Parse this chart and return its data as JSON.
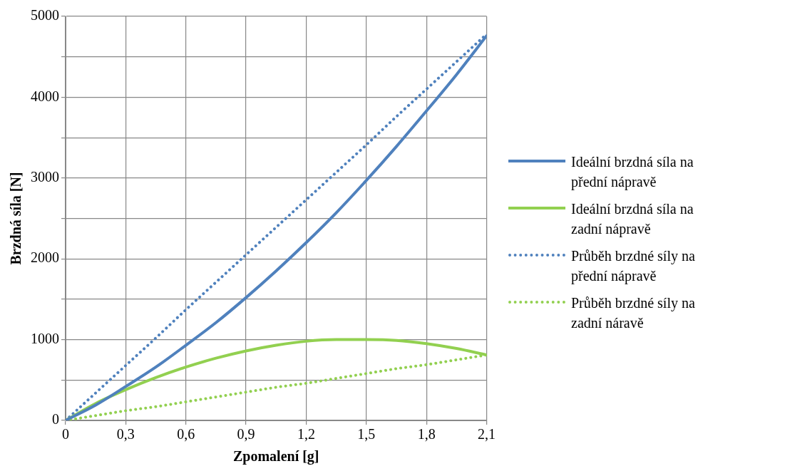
{
  "chart_data": {
    "type": "line",
    "xlabel": "Zpomalení [g]",
    "ylabel": "Brzdná síla [N]",
    "x": [
      0,
      0.15,
      0.3,
      0.45,
      0.6,
      0.75,
      0.9,
      1.05,
      1.2,
      1.35,
      1.5,
      1.65,
      1.8,
      1.95,
      2.1
    ],
    "series": [
      {
        "name": "Ideální brzdná síla na přední nápravě",
        "color": "#4f81bd",
        "line_style": "solid",
        "values": [
          0,
          190,
          420,
          660,
          930,
          1210,
          1520,
          1850,
          2200,
          2570,
          2970,
          3390,
          3830,
          4280,
          4760
        ]
      },
      {
        "name": "Ideální brzdná síla na zadní nápravě",
        "color": "#92d050",
        "line_style": "solid",
        "values": [
          0,
          210,
          380,
          530,
          660,
          770,
          860,
          930,
          980,
          1000,
          1000,
          990,
          950,
          890,
          810
        ]
      },
      {
        "name": "Průběh brzdné síly na přední nápravě",
        "color": "#4f81bd",
        "line_style": "dotted",
        "values": [
          0,
          340,
          680,
          1020,
          1370,
          1710,
          2050,
          2390,
          2730,
          3070,
          3410,
          3760,
          4100,
          4440,
          4780
        ]
      },
      {
        "name": "Průběh brzdné síly na zadní náravě",
        "color": "#92d050",
        "line_style": "dotted",
        "values": [
          0,
          60,
          120,
          170,
          230,
          290,
          350,
          410,
          460,
          520,
          580,
          640,
          690,
          750,
          810
        ]
      }
    ],
    "xlim": [
      0,
      2.1
    ],
    "xticks": [
      0,
      {
        "value": 0.3,
        "label": "0,3"
      },
      {
        "value": 0.6,
        "label": "0,6"
      },
      {
        "value": 0.9,
        "label": "0,9"
      },
      {
        "value": 1.2,
        "label": "1,2"
      },
      {
        "value": 1.5,
        "label": "1,5"
      },
      {
        "value": 1.8,
        "label": "1,8"
      },
      {
        "value": 2.1,
        "label": "2,1"
      }
    ],
    "ylim": [
      0,
      5000
    ],
    "yticks": [
      0,
      {
        "value": 500,
        "label": null
      },
      1000,
      {
        "value": 1500,
        "label": null
      },
      2000,
      {
        "value": 2500,
        "label": null
      },
      3000,
      {
        "value": 3500,
        "label": null
      },
      4000,
      {
        "value": 4500,
        "label": null
      },
      5000
    ],
    "grid": true,
    "legend": "right",
    "marker": "none"
  }
}
